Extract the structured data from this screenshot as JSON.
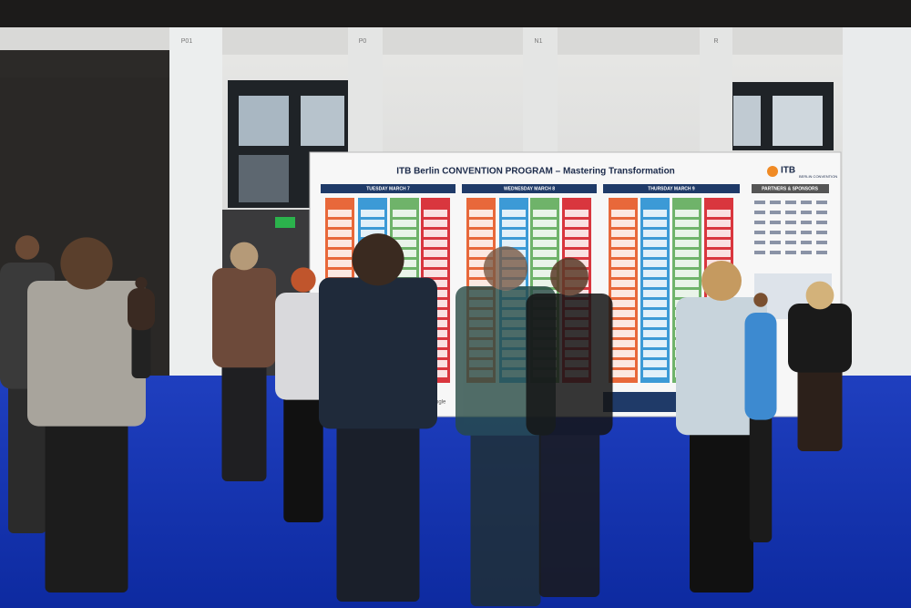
{
  "pillar_labels": [
    "P01",
    "P0",
    "N1",
    "R"
  ],
  "board": {
    "title": "ITB Berlin CONVENTION PROGRAM – Mastering Transformation",
    "days": [
      "TUESDAY MARCH 7",
      "WEDNESDAY MARCH 8",
      "THURSDAY MARCH 9"
    ],
    "partners_header": "PARTNERS & SPONSORS",
    "logo": {
      "brand": "ITB",
      "subtitle": "BERLIN CONVENTION"
    },
    "footer_sponsor": "Google"
  }
}
